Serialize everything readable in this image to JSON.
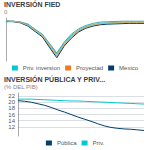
{
  "chart_data": [
    {
      "type": "line",
      "title": "INVERSIÓN FIED",
      "subtitle": "0",
      "x": [
        0,
        1,
        2,
        3,
        4,
        5,
        6,
        7,
        8,
        9,
        10,
        11,
        12,
        13,
        14,
        15,
        16,
        17,
        18,
        19
      ],
      "xlim": [
        0,
        19
      ],
      "ylim": [
        -11,
        5
      ],
      "tick_labels": false,
      "legend": "bottom",
      "series": [
        {
          "name": "Priv. inversion",
          "color": "#00c8d4",
          "values": [
            3.5,
            3.8,
            3.5,
            2.5,
            0.5,
            -1.5,
            -5,
            -8.5,
            -4.5,
            -1.5,
            0.5,
            1.8,
            2.5,
            3.0,
            3.2,
            3.3,
            3.4,
            3.5,
            3.5,
            3.5
          ]
        },
        {
          "name": "Proyectad",
          "color": "#f07820",
          "values": [
            3.8,
            3.8,
            3.3,
            2.2,
            0.2,
            -1.8,
            -5.5,
            -9.2,
            -5.0,
            -2.0,
            0.2,
            1.5,
            2.3,
            2.8,
            3.0,
            3.1,
            3.2,
            3.2,
            3.2,
            3.2
          ]
        },
        {
          "name": "Mexico",
          "color": "#003f6e",
          "values": [
            3.8,
            3.6,
            3.2,
            2.0,
            0.0,
            -2.0,
            -6.0,
            -9.8,
            -5.5,
            -2.5,
            -0.2,
            1.2,
            2.0,
            2.5,
            2.7,
            2.8,
            2.9,
            3.0,
            3.0,
            3.0
          ]
        },
        {
          "color": "#40a8b8",
          "values": [
            4.0,
            3.8,
            3.5,
            2.8,
            0.8,
            -1.0,
            -4.5,
            -8.0,
            -4.0,
            -1.0,
            1.0,
            2.2,
            3.0,
            3.5,
            3.6,
            3.7,
            3.8,
            3.8,
            3.8,
            3.8
          ]
        },
        {
          "color": "#c8b878",
          "values": [
            3.9,
            3.7,
            3.4,
            2.3,
            0.3,
            -1.6,
            -5.2,
            -9.0,
            -4.8,
            -1.8,
            0.4,
            1.6,
            2.4,
            2.9,
            3.1,
            3.2,
            3.3,
            3.4,
            3.4,
            3.4
          ]
        }
      ]
    },
    {
      "type": "line",
      "title": "INVERSIÓN PÚBLICA Y PRIV...",
      "subtitle": "(% DEL PIB)",
      "x": [
        0,
        1,
        2,
        3,
        4,
        5,
        6,
        7,
        8,
        9,
        10,
        11,
        12,
        13,
        14,
        15,
        16,
        17,
        18,
        19
      ],
      "xlim": [
        0,
        19
      ],
      "ylim": [
        9,
        23
      ],
      "yticks": [
        12,
        14,
        16,
        18,
        20,
        22
      ],
      "grid": true,
      "tick_labels": "y",
      "legend": "bottom",
      "series": [
        {
          "name": "Pública",
          "color": "#003f6e",
          "values": [
            20.5,
            20.3,
            20.0,
            19.5,
            19.0,
            18.3,
            17.5,
            16.8,
            16.0,
            15.2,
            14.5,
            13.8,
            13.0,
            12.3,
            11.8,
            11.5,
            11.3,
            11.2,
            11.0,
            10.8
          ]
        },
        {
          "name": "Priv.",
          "color": "#00c8d4",
          "values": [
            21.0,
            21.0,
            21.0,
            20.9,
            20.8,
            20.7,
            20.6,
            20.5,
            20.4,
            20.4,
            20.3,
            20.2,
            20.1,
            20.0,
            19.9,
            19.8,
            19.7,
            19.6,
            19.5,
            19.4
          ]
        }
      ]
    }
  ]
}
